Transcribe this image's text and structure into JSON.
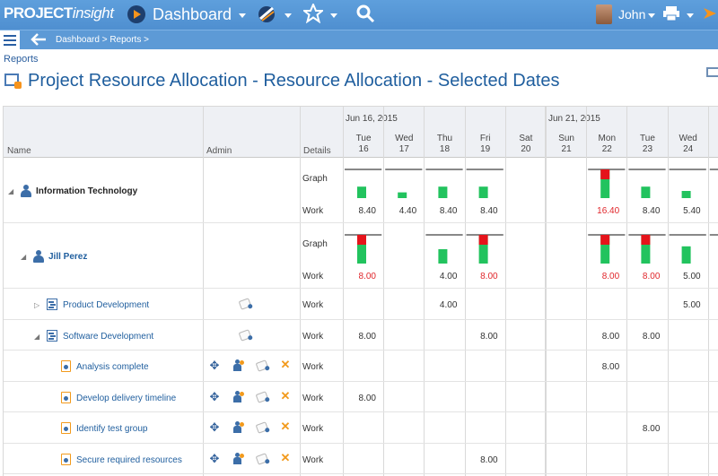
{
  "app": {
    "logo_main": "PROJECT",
    "logo_sub": "insight",
    "section": "Dashboard",
    "user": "John"
  },
  "breadcrumb": "Dashboard > Reports >",
  "reports_link": "Reports",
  "page_title": "Project Resource Allocation - Resource Allocation - Selected Dates",
  "columns": {
    "name": "Name",
    "admin": "Admin",
    "details": "Details"
  },
  "weeks": [
    "Jun 16, 2015",
    "Jun 21, 2015"
  ],
  "days": [
    {
      "dow": "Tue",
      "num": "16"
    },
    {
      "dow": "Wed",
      "num": "17"
    },
    {
      "dow": "Thu",
      "num": "18"
    },
    {
      "dow": "Fri",
      "num": "19"
    },
    {
      "dow": "Sat",
      "num": "20"
    },
    {
      "dow": "Sun",
      "num": "21"
    },
    {
      "dow": "Mon",
      "num": "22"
    },
    {
      "dow": "Tue",
      "num": "23"
    },
    {
      "dow": "Wed",
      "num": "24"
    },
    {
      "dow": "",
      "num": ""
    }
  ],
  "labels": {
    "graph": "Graph",
    "work": "Work"
  },
  "colors": {
    "under": "#22c35e",
    "over": "#e5141b",
    "accent": "#1f5e9e"
  },
  "rows": [
    {
      "name": "Information Technology",
      "kind": "group",
      "graph": [
        0.4,
        0.2,
        0.4,
        0.4,
        null,
        null,
        1.0,
        0.4,
        0.25,
        0
      ],
      "over": [
        false,
        false,
        false,
        false,
        false,
        false,
        true,
        false,
        false,
        false
      ],
      "work": [
        "8.40",
        "4.40",
        "8.40",
        "8.40",
        "",
        "",
        "16.40",
        "8.40",
        "5.40",
        ""
      ],
      "work_over": [
        false,
        false,
        false,
        false,
        false,
        false,
        true,
        false,
        false,
        false
      ]
    },
    {
      "name": "Jill Perez",
      "kind": "person",
      "graph": [
        1.0,
        null,
        0.5,
        1.0,
        null,
        null,
        1.0,
        1.0,
        0.6,
        0
      ],
      "over": [
        true,
        false,
        false,
        true,
        false,
        false,
        true,
        true,
        false,
        false
      ],
      "work": [
        "8.00",
        "",
        "4.00",
        "8.00",
        "",
        "",
        "8.00",
        "8.00",
        "5.00",
        ""
      ],
      "work_over": [
        true,
        false,
        false,
        true,
        false,
        false,
        true,
        true,
        false,
        false
      ]
    }
  ],
  "tasks": [
    {
      "name": "Product Development",
      "kind": "project",
      "expanded": false,
      "work": [
        "",
        "",
        "4.00",
        "",
        "",
        "",
        "",
        "",
        "5.00",
        ""
      ]
    },
    {
      "name": "Software Development",
      "kind": "project",
      "expanded": true,
      "work": [
        "8.00",
        "",
        "",
        "8.00",
        "",
        "",
        "8.00",
        "8.00",
        "",
        ""
      ]
    },
    {
      "name": "Analysis complete",
      "kind": "task",
      "work": [
        "",
        "",
        "",
        "",
        "",
        "",
        "8.00",
        "",
        "",
        ""
      ]
    },
    {
      "name": "Develop delivery timeline",
      "kind": "task",
      "work": [
        "8.00",
        "",
        "",
        "",
        "",
        "",
        "",
        "",
        "",
        ""
      ]
    },
    {
      "name": "Identify test group",
      "kind": "task",
      "work": [
        "",
        "",
        "",
        "",
        "",
        "",
        "",
        "8.00",
        "",
        ""
      ]
    },
    {
      "name": "Secure required resources",
      "kind": "task",
      "work": [
        "",
        "",
        "",
        "8.00",
        "",
        "",
        "",
        "",
        "",
        ""
      ]
    }
  ]
}
